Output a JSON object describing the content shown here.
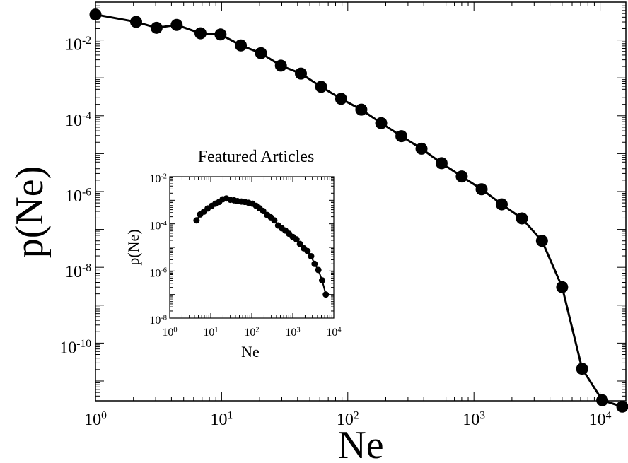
{
  "chart_data": [
    {
      "type": "line",
      "title": "",
      "xlabel": "Ne",
      "ylabel": "p(Ne)",
      "x_scale": "log",
      "y_scale": "log",
      "xlim": [
        1,
        16000
      ],
      "ylim": [
        3e-12,
        0.1
      ],
      "x_ticks": [
        {
          "base": "10",
          "exp": "0"
        },
        {
          "base": "10",
          "exp": "1"
        },
        {
          "base": "10",
          "exp": "2"
        },
        {
          "base": "10",
          "exp": "3"
        },
        {
          "base": "10",
          "exp": "4"
        }
      ],
      "y_ticks": [
        {
          "base": "10",
          "exp": "-2"
        },
        {
          "base": "10",
          "exp": "-4"
        },
        {
          "base": "10",
          "exp": "-6"
        },
        {
          "base": "10",
          "exp": "-8"
        },
        {
          "base": "10",
          "exp": "-10"
        }
      ],
      "grid": false,
      "legend": "none",
      "series": [
        {
          "marker": "circle",
          "color": "#000000",
          "x": [
            1,
            2.1,
            3.05,
            4.4,
            6.8,
            9.8,
            14.2,
            20.5,
            29.5,
            42.5,
            61.5,
            88.5,
            128,
            184,
            266,
            384,
            554,
            800,
            1150,
            1660,
            2400,
            3460,
            5000,
            7200,
            10400,
            15000
          ],
          "y": [
            0.047,
            0.03,
            0.021,
            0.025,
            0.015,
            0.014,
            0.0072,
            0.0045,
            0.0021,
            0.0013,
            0.00058,
            0.00028,
            0.000145,
            6.4e-05,
            2.9e-05,
            1.35e-05,
            5.6e-06,
            2.5e-06,
            1.15e-06,
            4.6e-07,
            1.95e-07,
            5e-08,
            3e-09,
            2.1e-11,
            3.1e-12,
            2.1e-12
          ]
        }
      ]
    },
    {
      "type": "line",
      "title": "Featured Articles",
      "xlabel": "Ne",
      "ylabel": "p(Ne)",
      "x_scale": "log",
      "y_scale": "log",
      "xlim": [
        1,
        10000
      ],
      "ylim": [
        1e-08,
        0.01
      ],
      "x_ticks": [
        {
          "base": "10",
          "exp": "0"
        },
        {
          "base": "10",
          "exp": "1"
        },
        {
          "base": "10",
          "exp": "2"
        },
        {
          "base": "10",
          "exp": "3"
        },
        {
          "base": "10",
          "exp": "4"
        }
      ],
      "y_ticks": [
        {
          "base": "10",
          "exp": "-2"
        },
        {
          "base": "10",
          "exp": "-4"
        },
        {
          "base": "10",
          "exp": "-6"
        },
        {
          "base": "10",
          "exp": "-8"
        }
      ],
      "grid": false,
      "legend": "none",
      "series": [
        {
          "marker": "circle",
          "color": "#000000",
          "x": [
            4.5,
            5.5,
            6.8,
            8.4,
            10.5,
            13,
            16,
            19.5,
            24,
            30,
            37,
            45,
            56,
            68,
            84,
            104,
            128,
            155,
            190,
            235,
            290,
            355,
            440,
            540,
            660,
            810,
            1000,
            1230,
            1500,
            1850,
            2280,
            2800,
            3400,
            4200,
            5200,
            6400
          ],
          "y": [
            0.00014,
            0.00025,
            0.00033,
            0.00045,
            0.00058,
            0.00072,
            0.00085,
            0.0011,
            0.0012,
            0.00105,
            0.001,
            0.00092,
            0.00088,
            0.00085,
            0.00078,
            0.00072,
            0.00058,
            0.00046,
            0.00035,
            0.00024,
            0.00019,
            0.00014,
            8.5e-05,
            6.5e-05,
            5.2e-05,
            3.8e-05,
            2.8e-05,
            2.2e-05,
            1.4e-05,
            9.2e-06,
            7e-06,
            4.2e-06,
            2e-06,
            1.1e-06,
            4e-07,
            1e-07
          ]
        }
      ]
    }
  ]
}
